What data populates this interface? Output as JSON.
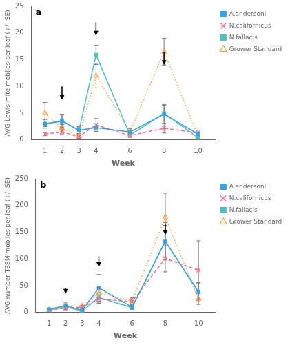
{
  "chart_data": [
    {
      "type": "line",
      "title": "a",
      "xlabel": "Week",
      "ylabel": "AVG Lewis mite mobiles per leaf (+/- SE)",
      "x": [
        1,
        2,
        3,
        4,
        6,
        8,
        10
      ],
      "xlim": [
        0.2,
        11.0
      ],
      "xticks": [
        1,
        2,
        3,
        4,
        6,
        8,
        10
      ],
      "ylim": [
        0,
        25
      ],
      "yticks": [
        0,
        5,
        10,
        15,
        20,
        25
      ],
      "grid": false,
      "legend": "upper right",
      "series": [
        {
          "name": "A.andersoni",
          "values": [
            3.0,
            3.5,
            1.8,
            2.3,
            1.5,
            4.8,
            1.1
          ],
          "errors": [
            0.5,
            1.2,
            0.6,
            0.7,
            0.4,
            1.8,
            0.4
          ],
          "marker": "square",
          "line_style": "solid"
        },
        {
          "name": "N.californicus",
          "values": [
            1.1,
            1.5,
            0.6,
            2.8,
            0.8,
            2.2,
            1.3
          ],
          "errors": [
            0.3,
            0.5,
            0.3,
            1.2,
            0.3,
            0.9,
            0.5
          ],
          "marker": "x",
          "line_style": "dashed"
        },
        {
          "name": "N.fallacis",
          "values": [
            3.0,
            3.6,
            1.8,
            15.9,
            0.9,
            5.0,
            0.4
          ],
          "errors": [
            0.8,
            1.2,
            0.7,
            1.8,
            0.4,
            1.5,
            0.3
          ],
          "marker": "square",
          "line_style": "solid"
        },
        {
          "name": "Grower Standard",
          "values": [
            5.0,
            2.2,
            0.7,
            12.0,
            1.5,
            16.5,
            0.6
          ],
          "errors": [
            2.0,
            0.7,
            0.5,
            2.3,
            0.6,
            2.5,
            0.4
          ],
          "marker": "triangle",
          "line_style": "dotted"
        }
      ],
      "arrows": [
        {
          "x": 2,
          "y_tip": 7.5,
          "length": 2.5
        },
        {
          "x": 4,
          "y_tip": 19.5,
          "length": 2.5
        },
        {
          "x": 8,
          "y_tip": 14.0,
          "length": 2.5
        }
      ]
    },
    {
      "type": "line",
      "title": "b",
      "xlabel": "Week",
      "ylabel": "AVG number TSSM mobiles per leaf (+/- SE)",
      "x": [
        1,
        2,
        3,
        4,
        6,
        8,
        10
      ],
      "xlim": [
        0.2,
        11.0
      ],
      "xticks": [
        1,
        2,
        3,
        4,
        6,
        8,
        10
      ],
      "ylim": [
        0,
        250
      ],
      "yticks": [
        0,
        50,
        100,
        150,
        200,
        250
      ],
      "grid": false,
      "legend": "upper right",
      "series": [
        {
          "name": "A.andersoni",
          "values": [
            6.0,
            13.0,
            4.0,
            46.0,
            10.0,
            133.0,
            38.0
          ],
          "errors": [
            2.0,
            5.0,
            2.0,
            25.0,
            4.0,
            30.0,
            18.0
          ],
          "marker": "square",
          "line_style": "solid"
        },
        {
          "name": "N.californicus",
          "values": [
            5.0,
            8.0,
            10.0,
            25.0,
            20.0,
            101.0,
            79.0
          ],
          "errors": [
            1.5,
            3.0,
            3.0,
            8.0,
            7.0,
            25.0,
            55.0
          ],
          "marker": "x",
          "line_style": "dashed"
        },
        {
          "name": "N.fallacis",
          "values": [
            5.0,
            10.0,
            3.0,
            28.0,
            9.0,
            133.0,
            39.0
          ],
          "errors": [
            1.5,
            4.0,
            1.0,
            9.0,
            3.0,
            35.0,
            16.0
          ],
          "marker": "square",
          "line_style": "solid"
        },
        {
          "name": "Grower Standard",
          "values": [
            5.0,
            12.0,
            12.0,
            37.0,
            21.0,
            178.0,
            25.0
          ],
          "errors": [
            1.5,
            4.0,
            4.0,
            10.0,
            6.0,
            45.0,
            10.0
          ],
          "marker": "triangle",
          "line_style": "dotted"
        }
      ],
      "arrows": [
        {
          "x": 2,
          "y_tip": 35.0,
          "length": 10.0
        },
        {
          "x": 4,
          "y_tip": 85.0,
          "length": 20.0
        },
        {
          "x": 8,
          "y_tip": 145.0,
          "length": 20.0
        }
      ]
    }
  ]
}
